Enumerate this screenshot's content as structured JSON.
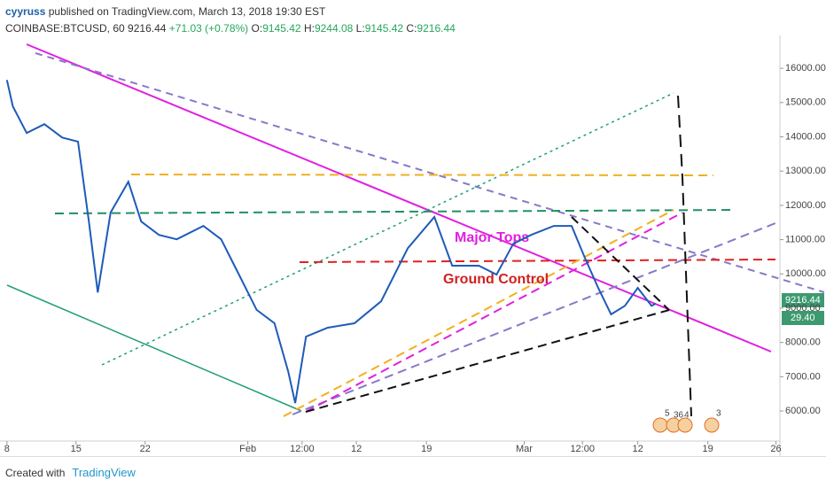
{
  "chart_data": {
    "type": "line",
    "publisher": "cyyruss",
    "published": "published on TradingView.com, March 13, 2018 19:30 EST",
    "symbol": "COINBASE:BTCUSD, 60",
    "last": 9216.44,
    "change": "+71.03 (+0.78%)",
    "open_label": "O:",
    "open": 9145.42,
    "high_label": "H:",
    "high": 9244.08,
    "low_label": "L:",
    "low": 9145.42,
    "close_label": "C:",
    "close": 9216.44,
    "price_tag": "9216.44",
    "timer_tag": "29.40",
    "annotations": [
      "Major Tops",
      "Ground Control"
    ],
    "events": [
      "5",
      "36",
      "4",
      "3"
    ],
    "footer": "Created with",
    "brand": "TradingView",
    "xlim": [
      -0.7,
      78.3
    ],
    "ylim": [
      5200,
      16830
    ],
    "xticks": [
      {
        "value": 0,
        "label": "8"
      },
      {
        "value": 7,
        "label": "15"
      },
      {
        "value": 14,
        "label": "22"
      },
      {
        "value": 24.4,
        "label": "Feb"
      },
      {
        "value": 29.9,
        "label": "12:00"
      },
      {
        "value": 35.4,
        "label": "12"
      },
      {
        "value": 42.5,
        "label": "19"
      },
      {
        "value": 52.4,
        "label": "Mar"
      },
      {
        "value": 58.3,
        "label": "12:00"
      },
      {
        "value": 63.9,
        "label": "12"
      },
      {
        "value": 71,
        "label": "19"
      },
      {
        "value": 77.9,
        "label": "26"
      }
    ],
    "yticks": [
      {
        "value": 6000,
        "label": "6000.00"
      },
      {
        "value": 7000,
        "label": "7000.00"
      },
      {
        "value": 8000,
        "label": "8000.00"
      },
      {
        "value": 9000,
        "label": "9000.00"
      },
      {
        "value": 10000,
        "label": "10000.00"
      },
      {
        "value": 11000,
        "label": "11000.00"
      },
      {
        "value": 12000,
        "label": "12000.00"
      },
      {
        "value": 13000,
        "label": "13000.00"
      },
      {
        "value": 14000,
        "label": "14000.00"
      },
      {
        "value": 15000,
        "label": "15000.00"
      },
      {
        "value": 16000,
        "label": "16000.00"
      }
    ],
    "x": [
      0,
      0.6,
      2,
      3.8,
      5.6,
      7.2,
      8.3,
      9.2,
      10.5,
      12.3,
      13.6,
      15.4,
      17.2,
      19.9,
      21.7,
      23.5,
      25.3,
      27.1,
      28.5,
      29.2,
      30.3,
      32.5,
      35.2,
      37.9,
      40.6,
      43.3,
      45.1,
      47.8,
      49.6,
      51.3,
      53.1,
      55.4,
      57.2,
      58.5,
      59.9,
      61.2,
      62.6,
      63.9,
      65.3,
      65.7
    ],
    "series": [
      {
        "color": "#1e5bb8",
        "values": [
          15660,
          14890,
          14110,
          14370,
          13980,
          13860,
          11530,
          9460,
          11790,
          12690,
          11530,
          11140,
          11010,
          11400,
          11010,
          9980,
          8950,
          8560,
          7140,
          6230,
          8170,
          8430,
          8560,
          9200,
          10750,
          11660,
          10240,
          10240,
          9980,
          10880,
          11140,
          11400,
          11400,
          10500,
          9590,
          8820,
          9070,
          9590,
          9070,
          9130
        ]
      }
    ]
  }
}
